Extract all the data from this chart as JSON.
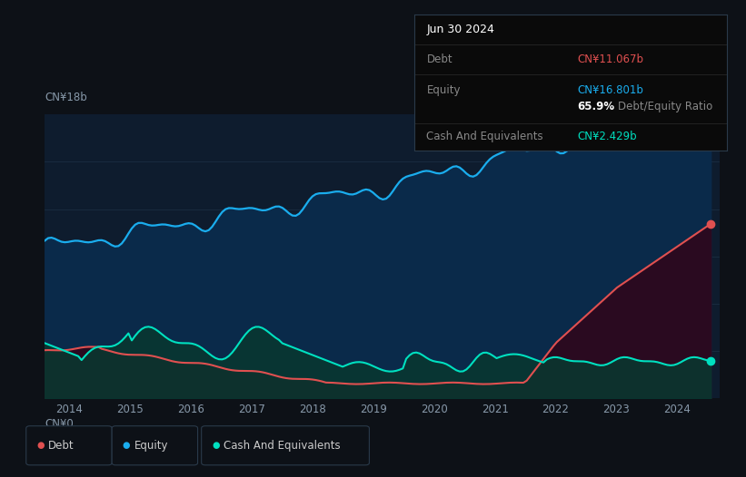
{
  "bg_color": "#0d1117",
  "plot_bg_color": "#0e1c2e",
  "title": "Jun 30 2024",
  "tooltip_debt_label": "Debt",
  "tooltip_equity_label": "Equity",
  "tooltip_cash_label": "Cash And Equivalents",
  "tooltip_debt": "CN¥11.067b",
  "tooltip_equity": "CN¥16.801b",
  "tooltip_ratio_pct": "65.9%",
  "tooltip_ratio_text": " Debt/Equity Ratio",
  "tooltip_cash": "CN¥2.429b",
  "ylabel_top": "CN¥18b",
  "ylabel_bottom": "CN¥0",
  "x_labels": [
    "2014",
    "2015",
    "2016",
    "2017",
    "2018",
    "2019",
    "2020",
    "2021",
    "2022",
    "2023",
    "2024"
  ],
  "x_positions": [
    2014,
    2015,
    2016,
    2017,
    2018,
    2019,
    2020,
    2021,
    2022,
    2023,
    2024
  ],
  "debt_color": "#e05050",
  "equity_color": "#1aadee",
  "cash_color": "#00e0c0",
  "grid_color": "#1a2d42",
  "legend_bg": "#0d1117",
  "legend_border": "#2a3a4a"
}
